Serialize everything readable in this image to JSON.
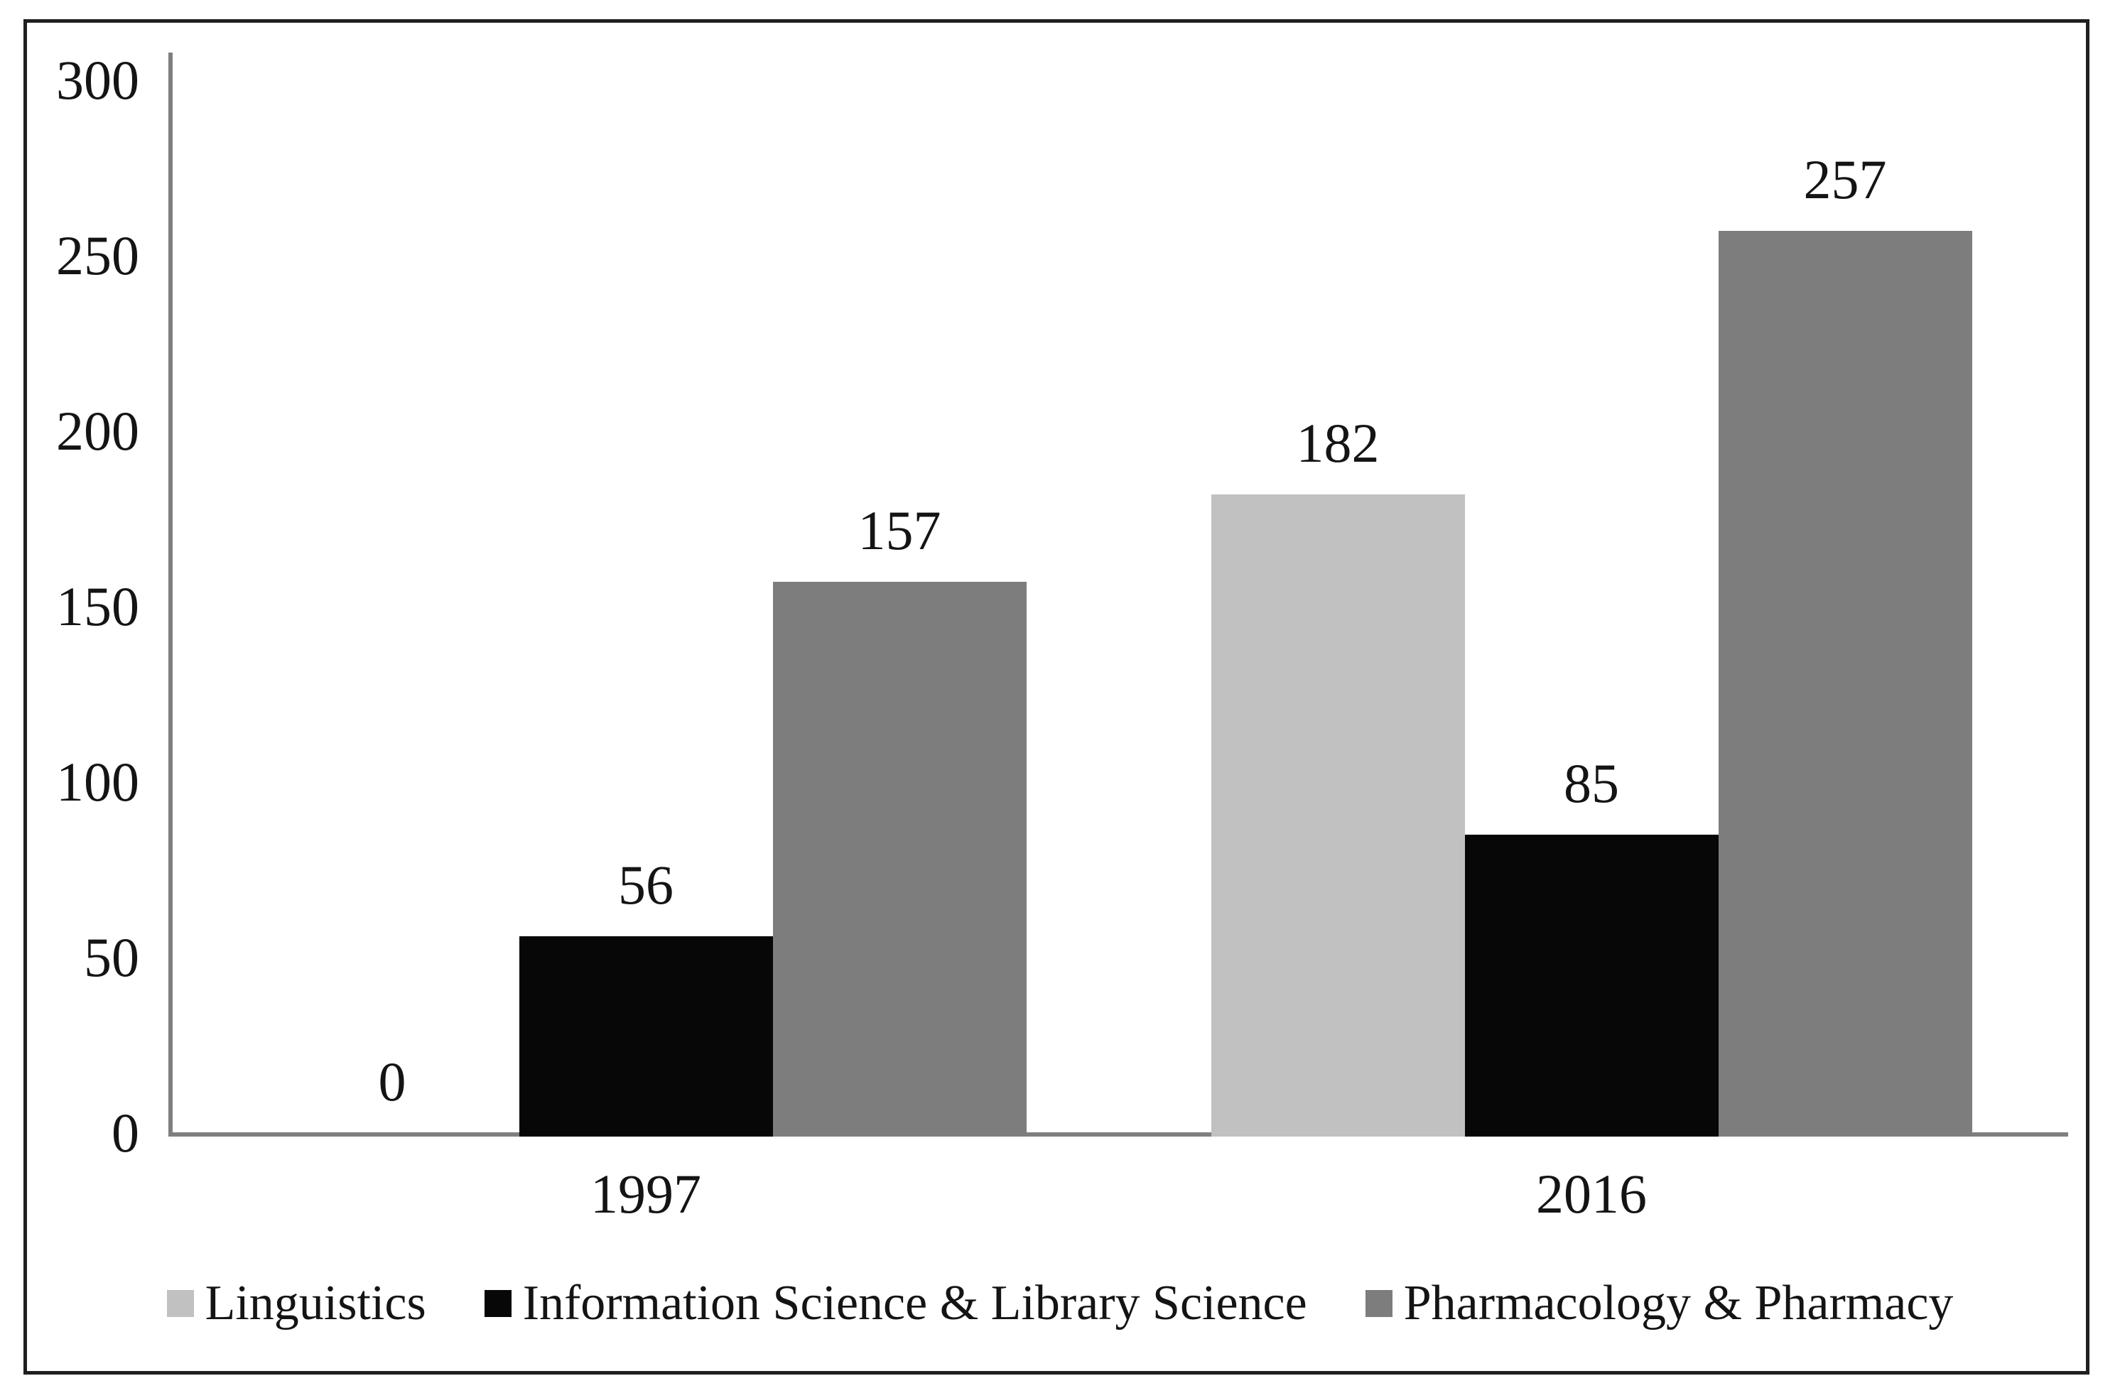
{
  "figure": {
    "background": "#ffffff",
    "frame_border_color": "#1f1f1f"
  },
  "chart_data": {
    "type": "bar",
    "title": "",
    "xlabel": "",
    "ylabel": "",
    "categories": [
      "1997",
      "2016"
    ],
    "series": [
      {
        "name": "Linguistics",
        "color": "#c1c1c1",
        "values": [
          0,
          182
        ]
      },
      {
        "name": "Information Science & Library Science",
        "color": "#070707",
        "values": [
          56,
          85
        ]
      },
      {
        "name": "Pharmacology & Pharmacy",
        "color": "#7d7d7d",
        "values": [
          157,
          257
        ]
      }
    ],
    "value_labels_shown": true,
    "value_labels": [
      [
        "0",
        "182"
      ],
      [
        "56",
        "85"
      ],
      [
        "157",
        "257"
      ]
    ],
    "ylim": [
      0,
      300
    ],
    "yticks": [
      "0",
      "50",
      "100",
      "150",
      "200",
      "250",
      "300"
    ],
    "grid": false,
    "legend_position": "bottom",
    "axis_color": "#7f7f7f",
    "text_color": "#141414"
  }
}
